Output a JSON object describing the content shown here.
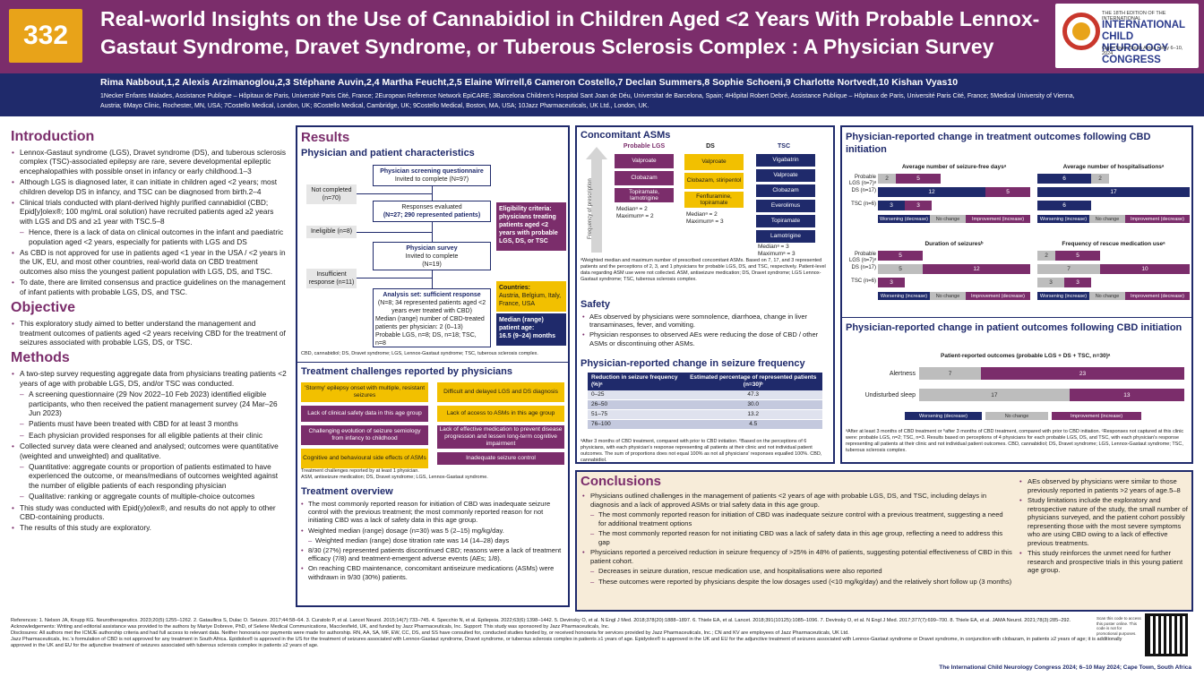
{
  "header": {
    "poster_number": "332",
    "title": "Real-world Insights on the Use of Cannabidiol in Children Aged <2 Years With Probable Lennox-Gastaut Syndrome, Dravet Syndrome, or Tuberous Sclerosis Complex : A Physician Survey",
    "logo_top": "THE 18TH EDITION OF THE INTERNATIONAL",
    "logo_name": "INTERNATIONAL CHILD NEUROLOGY CONGRESS",
    "logo_place": "Cape Town, South Africa | May 6–10, 2024"
  },
  "authors": "Rima Nabbout,1,2 Alexis Arzimanoglou,2,3 Stéphane Auvin,2,4 Martha Feucht,2,5 Elaine Wirrell,6 Cameron Costello,7 Declan Summers,8 Sophie Schoeni,9 Charlotte Nortvedt,10 Kishan Vyas10",
  "affiliations": "1Necker Enfants Malades, Assistance Publique – Hôpitaux de Paris, Université Paris Cité, France; 2European Reference Network EpiCARE; 3Barcelona Children's Hospital Sant Joan de Déu, Universitat de Barcelona, Spain; 4Hôpital Robert Debré, Assistance Publique – Hôpitaux de Paris, Université Paris Cité, France; 5Medical University of Vienna, Austria; 6Mayo Clinic, Rochester, MN, USA; 7Costello Medical, London, UK; 8Costello Medical, Cambridge, UK; 9Costello Medical, Boston, MA, USA; 10Jazz Pharmaceuticals, UK Ltd., London, UK.",
  "intro": {
    "title": "Introduction",
    "items": [
      {
        "t": "Lennox-Gastaut syndrome (LGS), Dravet syndrome (DS), and tuberous sclerosis complex (TSC)-associated epilepsy are rare, severe developmental epileptic encephalopathies with possible onset in infancy or early childhood.1–3",
        "sub": false
      },
      {
        "t": "Although LGS is diagnosed later, it can initiate in children aged <2 years; most children develop DS in infancy, and TSC can be diagnosed from birth.2–4",
        "sub": false
      },
      {
        "t": "Clinical trials conducted with plant-derived highly purified cannabidiol (CBD; Epid[y]olex®; 100 mg/mL oral solution) have recruited patients aged ≥2 years with LGS and DS and ≥1 year with TSC.5–8",
        "sub": false
      },
      {
        "t": "Hence, there is a lack of data on clinical outcomes in the infant and paediatric population aged <2 years, especially for patients with LGS and DS",
        "sub": true
      },
      {
        "t": "As CBD is not approved for use in patients aged <1 year in the USA / <2 years in the UK, EU, and most other countries, real-world data on CBD treatment outcomes also miss the youngest patient population with LGS, DS, and TSC.",
        "sub": false
      },
      {
        "t": "To date, there are limited consensus and practice guidelines on the management of infant patients with probable LGS, DS, and TSC.",
        "sub": false
      }
    ]
  },
  "objective": {
    "title": "Objective",
    "items": [
      {
        "t": "This exploratory study aimed to better understand the management and treatment outcomes of patients aged <2 years receiving CBD for the treatment of seizures associated with probable LGS, DS, or TSC.",
        "sub": false
      }
    ]
  },
  "methods": {
    "title": "Methods",
    "items": [
      {
        "t": "A two-step survey requesting aggregate data from physicians treating patients <2 years of age with probable LGS, DS, and/or TSC was conducted.",
        "sub": false
      },
      {
        "t": "A screening questionnaire (29 Nov 2022–10 Feb 2023) identified eligible participants, who then received the patient management survey (24 Mar–26 Jun 2023)",
        "sub": true
      },
      {
        "t": "Patients must have been treated with CBD for at least 3 months",
        "sub": true
      },
      {
        "t": "Each physician provided responses for all eligible patients at their clinic",
        "sub": true
      },
      {
        "t": "Collected survey data were cleaned and analysed; outcomes were quantitative (weighted and unweighted) and qualitative.",
        "sub": false
      },
      {
        "t": "Quantitative: aggregate counts or proportion of patients estimated to have experienced the outcome, or means/medians of outcomes weighted against the number of eligible patients of each responding physician",
        "sub": true
      },
      {
        "t": "Qualitative: ranking or aggregate counts of multiple-choice outcomes",
        "sub": true
      },
      {
        "t": "This study was conducted with Epid(y)olex®, and results do not apply to other CBD-containing products.",
        "sub": false
      },
      {
        "t": "The results of this study are exploratory.",
        "sub": false
      }
    ]
  },
  "results": {
    "title": "Results",
    "subtitle": "Physician and patient characteristics",
    "flow": {
      "screen": "Physician screening questionnaire",
      "screen_n": "Invited to complete (N=97)",
      "not_completed": "Not completed",
      "not_completed_n": "(n=70)",
      "resp": "Responses evaluated",
      "resp_n": "(N=27; 290 represented patients)",
      "inelig": "Ineligible (n=8)",
      "survey": "Physician survey",
      "survey_n": "Invited to complete",
      "survey_n2": "(N=19)",
      "insuff": "Insufficient",
      "insuff_n": "response (n=11)",
      "analysis": "Analysis set: sufficient response",
      "analysis_n": "(N=8; 34 represented patients aged <2 years ever treated with CBD)",
      "analysis_b1": "Median (range) number of CBD-treated patients per physician: 2 (0–13)",
      "analysis_b2": "Probable LGS, n=8; DS, n=18; TSC, n=8",
      "elig": "Eligibility criteria: physicians treating patients aged <2 years with probable LGS, DS, or TSC",
      "countries_t": "Countries:",
      "countries": "Austria, Belgium, Italy, France, USA",
      "age_t": "Median (range) patient age:",
      "age": "16.5 (9–24) months",
      "abbr": "CBD, cannabidiol; DS, Dravet syndrome; LGS, Lennox-Gastaut syndrome; TSC, tuberous sclerosis complex."
    },
    "challenges_title": "Treatment challenges reported by physicians",
    "challenges": [
      "'Stormy' epilepsy onset with multiple, resistant seizures",
      "Difficult and delayed LGS and DS diagnosis",
      "Lack of clinical safety data in this age group",
      "Lack of access to ASMs in this age group",
      "Challenging evolution of seizure semiology from infancy to childhood",
      "Lack of effective medication to prevent disease progression and lessen long-term cognitive impairment",
      "Cognitive and behavioural side effects of ASMs",
      "Inadequate seizure control"
    ],
    "challenges_note": "Treatment challenges reported by at least 1 physician.",
    "challenges_abbr": "ASM, antiseizure medication; DS, Dravet syndrome; LGS, Lennox-Gastaut syndrome.",
    "overview_title": "Treatment overview",
    "overview": [
      {
        "t": "The most commonly reported reason for initiation of CBD was inadequate seizure control with the previous treatment; the most commonly reported reason for not initiating CBD was a lack of safety data in this age group.",
        "sub": false
      },
      {
        "t": "Weighted median (range) dosage (n=30) was 5 (2–15) mg/kg/day.",
        "sub": false
      },
      {
        "t": "Weighted median (range) dose titration rate was 14 (14–28) days",
        "sub": true
      },
      {
        "t": "8/30 (27%) represented patients discontinued CBD; reasons were a lack of treatment efficacy (7/8) and treatment-emergent adverse events (AEs; 1/8).",
        "sub": false
      },
      {
        "t": "On reaching CBD maintenance, concomitant antiseizure medications (ASMs) were withdrawn in 9/30 (30%) patients.",
        "sub": false
      }
    ]
  },
  "concomitant": {
    "title": "Concomitant ASMs",
    "axis": "Frequency of prescription",
    "lgs_h": "Probable LGS",
    "ds_h": "DS",
    "tsc_h": "TSC",
    "lgs": [
      "Valproate",
      "Clobazam",
      "Topiramate, lamotrigine"
    ],
    "ds": [
      "Valproate",
      "Clobazam, stiripentol",
      "Fenfluramine, topiramate"
    ],
    "tsc": [
      "Vigabatrin",
      "Valproate",
      "Clobazam",
      "Everolimus",
      "Topiramate",
      "Lamotrigine"
    ],
    "lgs_med": "Medianᵃ = 2",
    "lgs_max": "Maximumᵃ = 2",
    "ds_med": "Medianᵃ = 2",
    "ds_max": "Maximumᵃ = 3",
    "tsc_med": "Medianᵃ = 3",
    "tsc_max": "Maximumᵃ = 3",
    "note": "ᵃWeighted median and maximum number of prescribed concomitant ASMs. Based on 7, 17, and 3 represented patients and the perceptions of 2, 3, and 1 physicians for probable LGS, DS, and TSC, respectively. Patient-level data regarding ASM use were not collected. ASM, antiseizure medication; DS, Dravet syndrome; LGS Lennox-Gastaut syndrome; TSC, tuberous sclerosis complex."
  },
  "safety": {
    "title": "Safety",
    "items": [
      "AEs observed by physicians were somnolence, diarrhoea, change in liver transaminases, fever, and vomiting.",
      "Physician responses to observed AEs were reducing the dose of CBD / other ASMs or discontinuing other ASMs."
    ]
  },
  "seizure_freq": {
    "title": "Physician-reported change in seizure frequency",
    "h1": "Reduction in seizure frequency (%)ᵃ",
    "h2": "Estimated percentage of represented patients (n=30)ᵇ",
    "rows": [
      [
        "0–25",
        "47.3"
      ],
      [
        "26–50",
        "30.0"
      ],
      [
        "51–75",
        "13.2"
      ],
      [
        "76–100",
        "4.5"
      ]
    ],
    "note": "ᵃAfter 3 months of CBD treatment, compared with prior to CBD initiation. ᵇBased on the perceptions of 6 physicians, with each physician's response representing all patients at their clinic and not individual patient outcomes. The sum of proportions does not equal 100% as not all physicians' responses equalled 100%. CBD, cannabidiol."
  },
  "outcomes": {
    "title": "Physician-reported change in treatment outcomes following CBD initiation",
    "rows_labels": [
      "Probable LGS (n=7)ᵃ",
      "DS (n=17)",
      "TSC (n=6)"
    ],
    "charts": [
      {
        "name": "Average number of seizure-free daysᵃ",
        "rows": [
          [
            0,
            2,
            5
          ],
          [
            12,
            0,
            5
          ],
          [
            3,
            0,
            3
          ]
        ]
      },
      {
        "name": "Average number of hospitalisationsᵃ",
        "rows": [
          [
            6,
            2,
            0
          ],
          [
            17,
            0,
            0
          ],
          [
            6,
            0,
            0
          ]
        ]
      },
      {
        "name": "Duration of seizuresᵇ",
        "rows": [
          [
            0,
            0,
            5
          ],
          [
            0,
            5,
            12
          ],
          [
            0,
            0,
            3
          ]
        ]
      },
      {
        "name": "Frequency of rescue medication useᵃ",
        "rows": [
          [
            0,
            2,
            5
          ],
          [
            0,
            7,
            10
          ],
          [
            0,
            3,
            3
          ]
        ]
      }
    ],
    "legend": [
      "Worsening (decrease)",
      "No change",
      "Improvement (increase)"
    ],
    "legend2": [
      "Worsening (increase)",
      "No change",
      "Improvement (decrease)"
    ]
  },
  "patient_outcomes": {
    "title": "Physician-reported change in patient outcomes following CBD initiation",
    "chart_title": "Patient-reported outcomes (probable LGS + DS + TSC, n=30)ᵃ",
    "rows": [
      {
        "label": "Alertness",
        "n": 7,
        "i": 23
      },
      {
        "label": "Undisturbed sleep",
        "n": 17,
        "i": 13
      }
    ],
    "legend": [
      "Worsening (decrease)",
      "No change",
      "Improvement (increase)"
    ],
    "note": "ᵃAfter at least 3 months of CBD treatment or ᵇafter 3 months of CBD treatment, compared with prior to CBD initiation. ᶜResponses not captured at this clinic were: probable LGS, n=2; TSC, n=3. Results based on perceptions of 4 physicians for each probable LGS, DS, and TSC, with each physician's response representing all patients at their clinic and not individual patient outcomes. CBD, cannabidiol; DS, Dravet syndrome; LGS, Lennox-Gastaut syndrome; TSC, tuberous sclerosis complex."
  },
  "chart_data": [
    {
      "type": "bar",
      "title": "Average number of seizure-free daysᵃ",
      "categories": [
        "Probable LGS (n=7)",
        "DS (n=17)",
        "TSC (n=6)"
      ],
      "series": [
        {
          "name": "Worsening (decrease)",
          "values": [
            0,
            12,
            3
          ]
        },
        {
          "name": "No change",
          "values": [
            2,
            0,
            0
          ]
        },
        {
          "name": "Improvement (increase)",
          "values": [
            5,
            5,
            3
          ]
        }
      ]
    },
    {
      "type": "bar",
      "title": "Average number of hospitalisationsᵃ",
      "categories": [
        "Probable LGS (n=7)",
        "DS (n=17)",
        "TSC (n=6)"
      ],
      "series": [
        {
          "name": "Worsening (increase)",
          "values": [
            6,
            17,
            6
          ]
        },
        {
          "name": "No change",
          "values": [
            2,
            0,
            0
          ]
        },
        {
          "name": "Improvement (decrease)",
          "values": [
            0,
            0,
            0
          ]
        }
      ]
    },
    {
      "type": "bar",
      "title": "Duration of seizuresᵇ",
      "categories": [
        "Probable LGS (n=7)",
        "DS (n=17)",
        "TSC (n=6)"
      ],
      "series": [
        {
          "name": "Worsening (increase)",
          "values": [
            0,
            0,
            0
          ]
        },
        {
          "name": "No change",
          "values": [
            0,
            5,
            0
          ]
        },
        {
          "name": "Improvement (decrease)",
          "values": [
            5,
            12,
            3
          ]
        }
      ]
    },
    {
      "type": "bar",
      "title": "Frequency of rescue medication useᵃ",
      "categories": [
        "Probable LGS (n=7)",
        "DS (n=17)",
        "TSC (n=6)"
      ],
      "series": [
        {
          "name": "Worsening (increase)",
          "values": [
            0,
            0,
            0
          ]
        },
        {
          "name": "No change",
          "values": [
            2,
            7,
            3
          ]
        },
        {
          "name": "Improvement (decrease)",
          "values": [
            5,
            10,
            3
          ]
        }
      ]
    },
    {
      "type": "bar",
      "title": "Patient-reported outcomes (probable LGS + DS + TSC, n=30)ᵃ",
      "categories": [
        "Alertness",
        "Undisturbed sleep"
      ],
      "series": [
        {
          "name": "Worsening (decrease)",
          "values": [
            0,
            0
          ]
        },
        {
          "name": "No change",
          "values": [
            7,
            17
          ]
        },
        {
          "name": "Improvement (increase)",
          "values": [
            23,
            13
          ]
        }
      ]
    }
  ],
  "conclusions": {
    "title": "Conclusions",
    "left": [
      {
        "t": "Physicians outlined challenges in the management of patients <2 years of age with probable LGS, DS, and TSC, including delays in diagnosis and a lack of approved ASMs or trial safety data in this age group.",
        "sub": false
      },
      {
        "t": "The most commonly reported reason for initiation of CBD was inadequate seizure control with a previous treatment, suggesting a need for additional treatment options",
        "sub": true
      },
      {
        "t": "The most commonly reported reason for not initiating CBD was a lack of safety data in this age group, reflecting a need to address this gap",
        "sub": true
      },
      {
        "t": "Physicians reported a perceived reduction in seizure frequency of >25% in 48% of patients, suggesting potential effectiveness of CBD in this patient cohort.",
        "sub": false
      },
      {
        "t": "Decreases in seizure duration, rescue medication use, and hospitalisations were also reported",
        "sub": true
      },
      {
        "t": "These outcomes were reported by physicians despite the low dosages used (<10 mg/kg/day) and the relatively short follow up (3 months)",
        "sub": true
      }
    ],
    "right": [
      {
        "t": "AEs observed by physicians were similar to those previously reported in patients >2 years of age.5–8",
        "sub": false
      },
      {
        "t": "Study limitations include the exploratory and retrospective nature of the study, the small number of physicians surveyed, and the patient cohort possibly representing those with the most severe symptoms who are using CBD owing to a lack of effective previous treatments.",
        "sub": false
      },
      {
        "t": "This study reinforces the unmet need for further research and prospective trials in this young patient age group.",
        "sub": false
      }
    ]
  },
  "references": "References: 1. Nelson JA, Knupp KG. Neurotherapeutics. 2023;20(5):1255–1262. 2. Gataullina S, Dulac O. Seizure. 2017;44:58–64. 3. Curatolo P, et al. Lancet Neurol. 2015;14(7):733–745. 4. Specchio N, et al. Epilepsia. 2022;63(6):1398–1442. 5. Devinsky O, et al. N Engl J Med. 2018;378(20):1888–1897. 6. Thiele EA, et al. Lancet. 2018;391(10125):1085–1096. 7. Devinsky O, et al. N Engl J Med. 2017;377(7):699–700. 8. Thiele EA, et al. JAMA Neurol. 2021;78(3):285–292.",
  "acknowledgements": "Acknowledgements: Writing and editorial assistance was provided to the authors by Mariye Dobreve, PhD, of Selene Medical Communications, Macclesfield, UK, and funded by Jazz Pharmaceuticals, Inc. Support: This study was sponsored by Jazz Pharmaceuticals, Inc.",
  "disclosures": "Disclosures: All authors met the ICMJE authorship criteria and had full access to relevant data. Neither honoraria nor payments were made for authorship. RN, AA, SA, MF, EW, CC, DS, and SS have consulted for, conducted studies funded by, or received honoraria for services provided by Jazz Pharmaceuticals, Inc.; CN and KV are employees of Jazz Pharmaceuticals, UK Ltd.",
  "disclaimer": "Jazz Pharmaceuticals, Inc.'s formulation of CBD is not approved for any treatment in South Africa. Epidiolex® is approved in the US for the treatment of seizures associated with Lennox-Gastaut syndrome, Dravet syndrome, or tuberous sclerosis complex in patients ≥1 years of age. Epidyolex® is approved in the UK and EU for the adjunctive treatment of seizures associated with Lennox-Gastaut syndrome or Dravet syndrome, in conjunction with clobazam, in patients ≥2 years of age; it is additionally approved in the UK and EU for the adjunctive treatment of seizures associated with tuberous sclerosis complex in patients ≥2 years of age.",
  "qr_text": "Scan this code to access this poster online. This code is not for promotional purposes.",
  "footer": "The International Child Neurology Congress 2024; 6–10 May 2024; Cape Town, South Africa"
}
